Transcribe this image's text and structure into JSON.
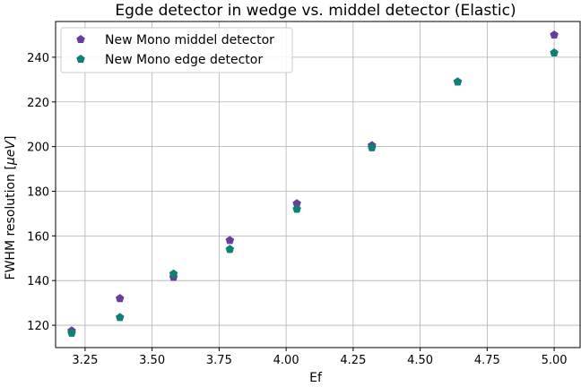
{
  "chart_data": {
    "type": "scatter",
    "title": "Egde detector in wedge vs. middel detector (Elastic)",
    "xlabel": "Ef",
    "ylabel": "FWHM resolution [μeV]",
    "xlim": [
      3.14,
      5.1
    ],
    "ylim": [
      110,
      256
    ],
    "xticks": [
      3.25,
      3.5,
      3.75,
      4.0,
      4.25,
      4.5,
      4.75,
      5.0
    ],
    "xtick_labels": [
      "3.25",
      "3.50",
      "3.75",
      "4.00",
      "4.25",
      "4.50",
      "4.75",
      "5.00"
    ],
    "yticks": [
      120,
      140,
      160,
      180,
      200,
      220,
      240
    ],
    "ytick_labels": [
      "120",
      "140",
      "160",
      "180",
      "200",
      "220",
      "240"
    ],
    "grid": true,
    "legend_position": "top-left",
    "marker": "pentagon",
    "series": [
      {
        "name": "New Mono middel detector",
        "color": "#6a3d9a",
        "x": [
          3.2,
          3.38,
          3.58,
          3.79,
          4.04,
          4.32,
          4.64,
          5.0
        ],
        "y": [
          117.5,
          132,
          141.5,
          158,
          174.5,
          200.5,
          229,
          250
        ]
      },
      {
        "name": "New Mono edge detector",
        "color": "#0e8074",
        "x": [
          3.2,
          3.38,
          3.58,
          3.79,
          4.04,
          4.32,
          4.64,
          5.0
        ],
        "y": [
          116.5,
          123.5,
          143,
          154,
          172,
          199.5,
          229,
          242
        ]
      }
    ]
  }
}
